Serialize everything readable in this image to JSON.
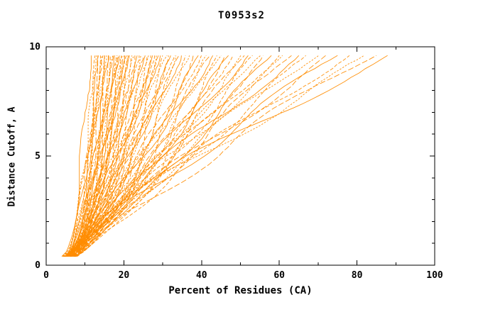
{
  "page": {
    "background": "#ffffff"
  },
  "chart_data": {
    "type": "line",
    "title": "T0953s2",
    "xlabel": "Percent of Residues (CA)",
    "ylabel": "Distance Cutoff, A",
    "x_range": [
      0,
      100
    ],
    "y_range": [
      0,
      10
    ],
    "x_ticks": [
      0,
      20,
      40,
      60,
      80,
      100
    ],
    "x_minor_step": 10,
    "y_ticks": [
      0,
      5,
      10
    ],
    "y_minor_step": 1,
    "grid": false,
    "legend": "none",
    "line_color": "#ff8c00",
    "axis_color": "#000000",
    "curve_y_start": 0.4,
    "curve_y_end": 9.6,
    "curves_format": [
      "start_x_percent",
      "end_x_percent",
      "shape_exponent"
    ],
    "curves": [
      [
        4.0,
        11.5,
        0.5
      ],
      [
        5.5,
        12.5,
        0.52
      ],
      [
        4.8,
        13.0,
        0.55
      ],
      [
        6.2,
        13.2,
        0.5
      ],
      [
        5.0,
        13.5,
        0.58
      ],
      [
        7.0,
        14.0,
        0.52
      ],
      [
        4.4,
        14.2,
        0.6
      ],
      [
        6.6,
        14.5,
        0.55
      ],
      [
        5.8,
        15.0,
        0.62
      ],
      [
        7.5,
        15.2,
        0.5
      ],
      [
        4.2,
        15.5,
        0.58
      ],
      [
        6.0,
        16.0,
        0.55
      ],
      [
        5.2,
        16.2,
        0.63
      ],
      [
        7.8,
        16.5,
        0.52
      ],
      [
        4.6,
        17.0,
        0.6
      ],
      [
        6.8,
        17.2,
        0.56
      ],
      [
        5.4,
        17.5,
        0.64
      ],
      [
        8.0,
        18.0,
        0.52
      ],
      [
        4.9,
        18.2,
        0.6
      ],
      [
        6.4,
        18.5,
        0.57
      ],
      [
        5.1,
        19.0,
        0.65
      ],
      [
        7.2,
        19.2,
        0.55
      ],
      [
        4.3,
        19.5,
        0.62
      ],
      [
        6.1,
        20.0,
        0.58
      ],
      [
        5.6,
        20.2,
        0.66
      ],
      [
        7.6,
        20.5,
        0.56
      ],
      [
        4.7,
        21.0,
        0.63
      ],
      [
        6.3,
        21.2,
        0.6
      ],
      [
        5.3,
        21.5,
        0.68
      ],
      [
        7.1,
        22.0,
        0.58
      ],
      [
        4.5,
        22.5,
        0.64
      ],
      [
        6.7,
        23.0,
        0.62
      ],
      [
        5.7,
        23.5,
        0.7
      ],
      [
        7.4,
        24.0,
        0.6
      ],
      [
        4.8,
        24.5,
        0.66
      ],
      [
        6.0,
        25.0,
        0.63
      ],
      [
        5.5,
        25.5,
        0.72
      ],
      [
        7.7,
        26.0,
        0.62
      ],
      [
        4.6,
        26.5,
        0.68
      ],
      [
        6.5,
        27.0,
        0.65
      ],
      [
        5.2,
        27.5,
        0.74
      ],
      [
        7.3,
        28.0,
        0.64
      ],
      [
        4.9,
        28.5,
        0.7
      ],
      [
        6.2,
        29.0,
        0.67
      ],
      [
        5.8,
        29.5,
        0.76
      ],
      [
        7.0,
        30.0,
        0.66
      ],
      [
        4.4,
        31.0,
        0.72
      ],
      [
        6.6,
        31.5,
        0.7
      ],
      [
        5.4,
        32.0,
        0.78
      ],
      [
        7.5,
        33.0,
        0.68
      ],
      [
        4.7,
        33.5,
        0.75
      ],
      [
        6.1,
        34.0,
        0.72
      ],
      [
        5.6,
        35.0,
        0.8
      ],
      [
        7.2,
        36.0,
        0.7
      ],
      [
        4.5,
        37.0,
        0.78
      ],
      [
        6.4,
        38.0,
        0.75
      ],
      [
        5.3,
        39.0,
        0.82
      ],
      [
        7.6,
        40.0,
        0.72
      ],
      [
        4.8,
        41.0,
        0.8
      ],
      [
        6.0,
        42.0,
        0.78
      ],
      [
        5.5,
        43.0,
        0.85
      ],
      [
        7.1,
        44.0,
        0.75
      ],
      [
        4.6,
        45.0,
        0.82
      ],
      [
        6.3,
        46.0,
        0.8
      ],
      [
        5.7,
        47.0,
        0.88
      ],
      [
        7.4,
        48.0,
        0.78
      ],
      [
        5.0,
        50.0,
        0.85
      ],
      [
        6.6,
        51.0,
        0.9
      ],
      [
        5.2,
        52.0,
        0.95
      ],
      [
        7.0,
        53.0,
        0.88
      ],
      [
        4.9,
        55.0,
        0.92
      ],
      [
        6.2,
        56.0,
        0.98
      ],
      [
        5.5,
        58.0,
        0.95
      ],
      [
        7.3,
        60.0,
        1.0
      ],
      [
        5.1,
        61.0,
        1.05
      ],
      [
        6.5,
        63.0,
        1.0
      ],
      [
        5.8,
        65.0,
        1.1
      ],
      [
        7.0,
        67.0,
        1.05
      ],
      [
        5.4,
        70.0,
        1.12
      ],
      [
        6.8,
        72.0,
        1.08
      ],
      [
        5.6,
        75.0,
        1.15
      ],
      [
        7.2,
        78.0,
        1.12
      ],
      [
        6.0,
        82.0,
        1.2
      ],
      [
        6.9,
        85.0,
        1.18
      ],
      [
        6.3,
        88.0,
        1.25
      ]
    ]
  }
}
